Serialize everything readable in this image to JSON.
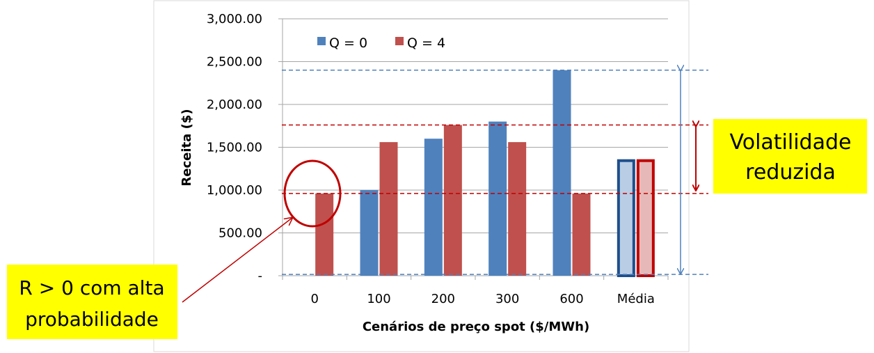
{
  "chart_data": {
    "type": "bar",
    "categories": [
      "0",
      "100",
      "200",
      "300",
      "600",
      "Média"
    ],
    "series": [
      {
        "name": "Q = 0",
        "values": [
          0,
          1000,
          1600,
          1800,
          2400,
          1360
        ],
        "color": "#4f81bd",
        "light_color": "#b9cde5"
      },
      {
        "name": "Q = 4",
        "values": [
          960,
          1560,
          1760,
          1560,
          960,
          1360
        ],
        "color": "#c0504d",
        "light_color": "#e6b9b8"
      }
    ],
    "xlabel": "Cenários de preço spot ($/MWh)",
    "ylabel": "Receita ($)",
    "ylim": [
      0,
      3000
    ],
    "yticks": [
      0,
      500,
      1000,
      1500,
      2000,
      2500,
      3000
    ],
    "ytick_labels": [
      "-",
      "500.00",
      "1,000.00",
      "1,500.00",
      "2,000.00",
      "2,500.00",
      "3,000.00"
    ],
    "grid": true,
    "legend": "top",
    "reference_lines": [
      {
        "value": 2400,
        "color": "#4f81bd"
      },
      {
        "value": 15,
        "color": "#4f81bd"
      },
      {
        "value": 1760,
        "color": "#c00000"
      },
      {
        "value": 960,
        "color": "#c00000"
      }
    ]
  },
  "annotations": {
    "volatility": {
      "line1": "Volatilidade",
      "line2": "reduzida"
    },
    "probability": {
      "line1": "R > 0 com alta",
      "line2": "probabilidade"
    }
  },
  "colors": {
    "callout_bg": "#ffff00",
    "arrow_red": "#c00000",
    "arrow_blue": "#4f81bd"
  }
}
